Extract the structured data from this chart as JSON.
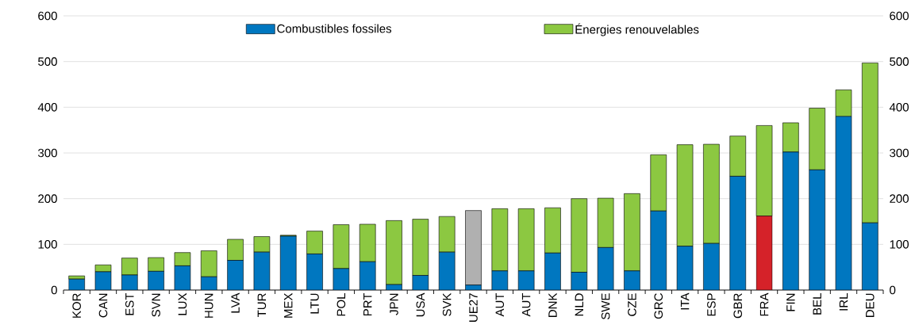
{
  "chart_data": {
    "type": "bar",
    "stacked": true,
    "categories": [
      "KOR",
      "CAN",
      "EST",
      "SVN",
      "LUX",
      "HUN",
      "LVA",
      "TUR",
      "MEX",
      "LTU",
      "POL",
      "PRT",
      "JPN",
      "USA",
      "SVK",
      "UE27",
      "AUT",
      "AUT",
      "DNK",
      "NLD",
      "SWE",
      "CZE",
      "GRC",
      "ITA",
      "ESP",
      "GBR",
      "FRA",
      "FIN",
      "BEL",
      "IRL",
      "DEU"
    ],
    "series": [
      {
        "name": "Combustibles fossiles",
        "color": "#0077c0",
        "colors": [
          "#0077c0",
          "#0077c0",
          "#0077c0",
          "#0077c0",
          "#0077c0",
          "#0077c0",
          "#0077c0",
          "#0077c0",
          "#0077c0",
          "#0077c0",
          "#0077c0",
          "#0077c0",
          "#0077c0",
          "#0077c0",
          "#0077c0",
          "#0077c0",
          "#0077c0",
          "#0077c0",
          "#0077c0",
          "#0077c0",
          "#0077c0",
          "#0077c0",
          "#0077c0",
          "#0077c0",
          "#0077c0",
          "#0077c0",
          "#d52229",
          "#0077c0",
          "#0077c0",
          "#0077c0",
          "#0077c0"
        ],
        "values": [
          24,
          40,
          33,
          41,
          53,
          29,
          65,
          83,
          118,
          79,
          47,
          62,
          12,
          32,
          83,
          11,
          42,
          42,
          81,
          39,
          93,
          42,
          173,
          96,
          102,
          249,
          162,
          302,
          263,
          380,
          147
        ]
      },
      {
        "name": "Énergies renouvelables",
        "color": "#8cc841",
        "colors": [
          "#8cc841",
          "#8cc841",
          "#8cc841",
          "#8cc841",
          "#8cc841",
          "#8cc841",
          "#8cc841",
          "#8cc841",
          "#8cc841",
          "#8cc841",
          "#8cc841",
          "#8cc841",
          "#8cc841",
          "#8cc841",
          "#8cc841",
          "#b0b0b0",
          "#8cc841",
          "#8cc841",
          "#8cc841",
          "#8cc841",
          "#8cc841",
          "#8cc841",
          "#8cc841",
          "#8cc841",
          "#8cc841",
          "#8cc841",
          "#8cc841",
          "#8cc841",
          "#8cc841",
          "#8cc841",
          "#8cc841"
        ],
        "values": [
          7,
          15,
          37,
          30,
          29,
          57,
          46,
          34,
          2,
          50,
          96,
          82,
          140,
          123,
          78,
          163,
          136,
          136,
          99,
          161,
          108,
          169,
          123,
          222,
          217,
          88,
          198,
          64,
          135,
          58,
          350
        ]
      }
    ],
    "ylim": [
      0,
      600
    ],
    "yticks": [
      0,
      100,
      200,
      300,
      400,
      500,
      600
    ],
    "y2lim": [
      0,
      600
    ],
    "y2ticks": [
      0,
      100,
      200,
      300,
      400,
      500,
      600
    ],
    "grid": "y",
    "legend": "top"
  }
}
